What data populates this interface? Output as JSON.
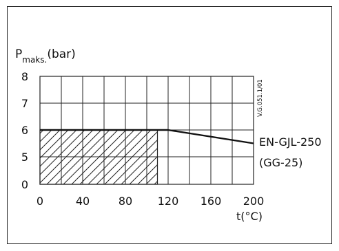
{
  "chart_data": {
    "type": "line",
    "ylabel_main": "P",
    "ylabel_sub": "maks.",
    "ylabel_unit": "(bar)",
    "xlabel": "t(°C)",
    "xlim": [
      0,
      200
    ],
    "ylim": [
      0,
      8
    ],
    "x_ticks": [
      0,
      40,
      80,
      120,
      160,
      200
    ],
    "y_ticks": [
      0,
      5,
      6,
      7,
      8
    ],
    "grid": true,
    "series": [
      {
        "name": "EN-GJL-250 (GG-25)",
        "label_lines": [
          "EN-GJL-250",
          "(GG-25)"
        ],
        "color": "#111111",
        "x": [
          0,
          120,
          200
        ],
        "y": [
          6,
          6,
          5.5
        ]
      }
    ],
    "hatched_region": {
      "x": [
        0,
        110
      ],
      "y": [
        0,
        6
      ]
    },
    "annotation": "V.G.051.1/01"
  }
}
